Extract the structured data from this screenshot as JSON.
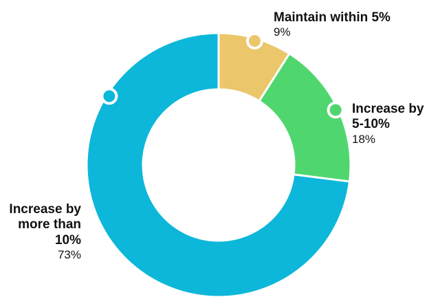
{
  "chart_data": {
    "type": "pie",
    "slices": [
      {
        "label": "Maintain within 5%",
        "value": 9,
        "display": "9%",
        "color": "#EBC66B"
      },
      {
        "label": "Increase by 5-10%",
        "value": 18,
        "display": "18%",
        "color": "#50D66F"
      },
      {
        "label": "Increase by more than 10%",
        "value": 73,
        "display": "73%",
        "color": "#0DB7D9"
      }
    ],
    "donut": true,
    "legend": "none",
    "label_placement": "outside with marker dots"
  }
}
